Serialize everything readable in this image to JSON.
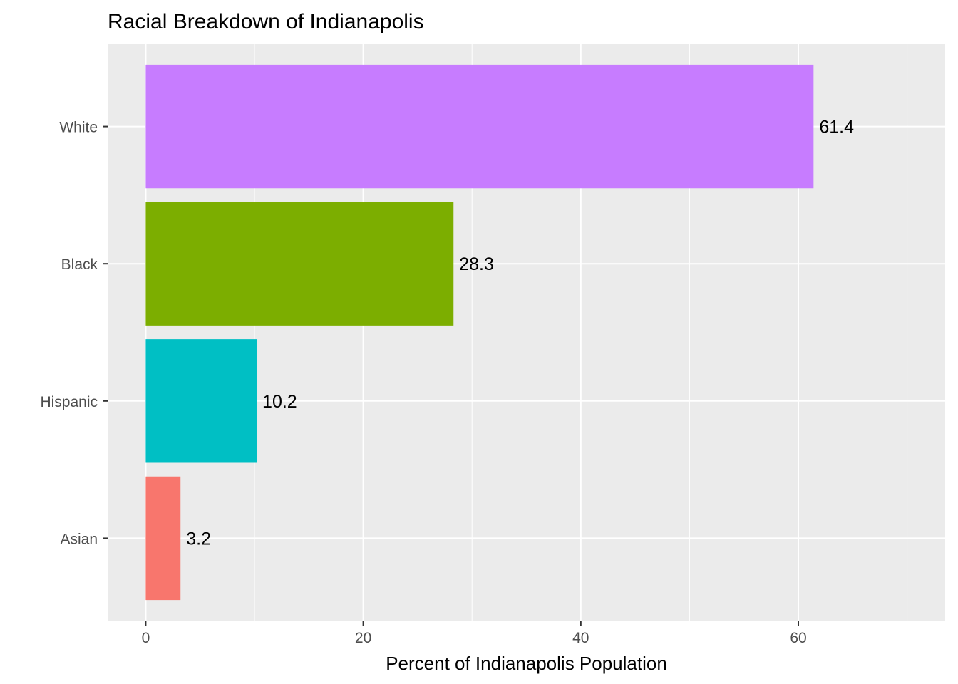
{
  "chart_data": {
    "type": "bar",
    "orientation": "horizontal",
    "title": "Racial Breakdown of Indianapolis",
    "xlabel": "Percent of Indianapolis Population",
    "ylabel": "",
    "categories": [
      "Asian",
      "Hispanic",
      "Black",
      "White"
    ],
    "values": [
      3.2,
      10.2,
      28.3,
      61.4
    ],
    "data_labels": [
      "3.2",
      "10.2",
      "28.3",
      "61.4"
    ],
    "colors": [
      "#F8766D",
      "#00BFC4",
      "#7CAE00",
      "#C77CFF"
    ],
    "xlim": [
      -3.5,
      73.5
    ],
    "x_ticks": [
      0,
      20,
      40,
      60
    ],
    "x_tick_labels": [
      "0",
      "20",
      "40",
      "60"
    ],
    "x_minor_gridlines": [
      10,
      30,
      50,
      70
    ],
    "grid": true,
    "legend": "none",
    "panel_background": "#EBEBEB",
    "gridline_color": "#FFFFFF"
  }
}
